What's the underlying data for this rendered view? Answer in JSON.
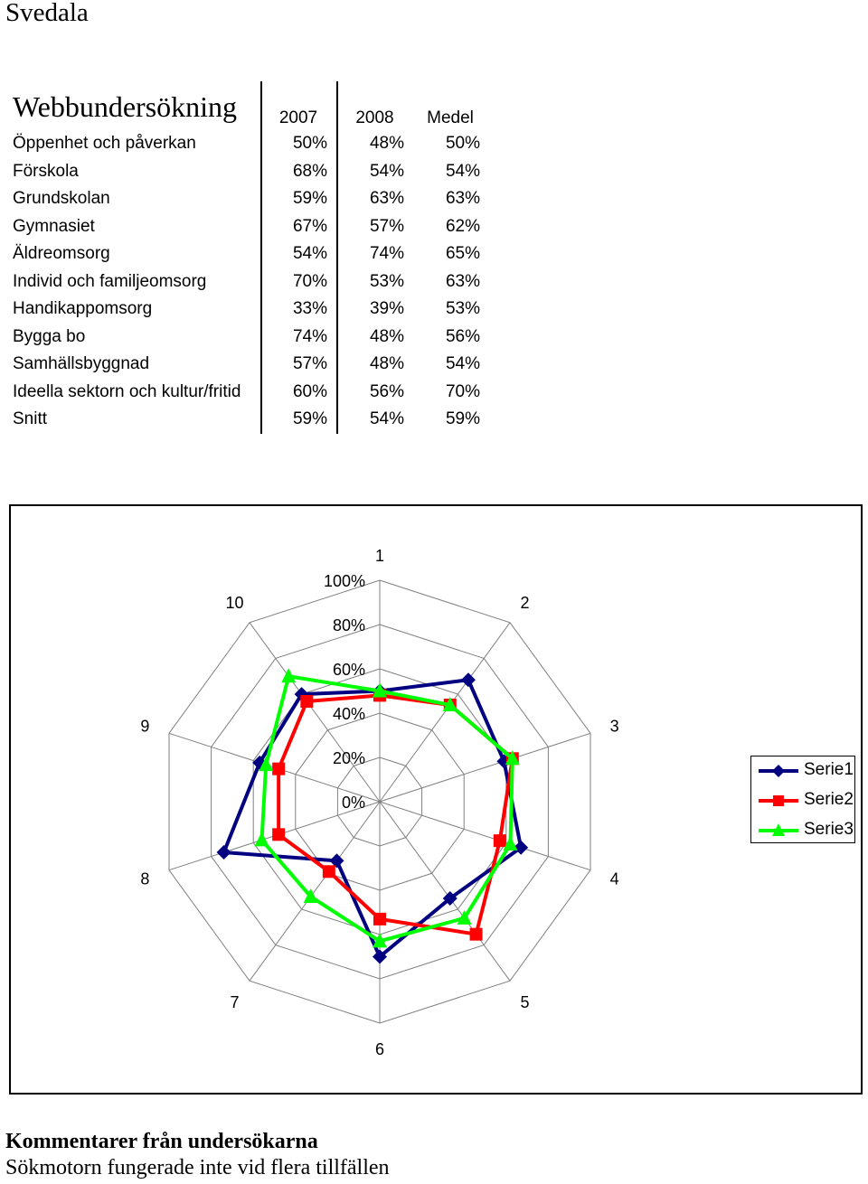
{
  "page_title": "Svedala",
  "table": {
    "caption": "Webbundersökning",
    "headers": [
      "2007",
      "2008",
      "Medel"
    ],
    "rows": [
      {
        "label": "Öppenhet och påverkan",
        "values": [
          "50%",
          "48%",
          "50%"
        ]
      },
      {
        "label": "Förskola",
        "values": [
          "68%",
          "54%",
          "54%"
        ]
      },
      {
        "label": "Grundskolan",
        "values": [
          "59%",
          "63%",
          "63%"
        ]
      },
      {
        "label": "Gymnasiet",
        "values": [
          "67%",
          "57%",
          "62%"
        ]
      },
      {
        "label": "Äldreomsorg",
        "values": [
          "54%",
          "74%",
          "65%"
        ]
      },
      {
        "label": "Individ och familjeomsorg",
        "values": [
          "70%",
          "53%",
          "63%"
        ]
      },
      {
        "label": "Handikappomsorg",
        "values": [
          "33%",
          "39%",
          "53%"
        ]
      },
      {
        "label": "Bygga bo",
        "values": [
          "74%",
          "48%",
          "56%"
        ]
      },
      {
        "label": "Samhällsbyggnad",
        "values": [
          "57%",
          "48%",
          "54%"
        ]
      },
      {
        "label": "Ideella sektorn och kultur/fritid",
        "values": [
          "60%",
          "56%",
          "70%"
        ]
      },
      {
        "label": "Snitt",
        "values": [
          "59%",
          "54%",
          "59%"
        ]
      }
    ]
  },
  "chart_data": {
    "type": "radar",
    "categories": [
      "1",
      "2",
      "3",
      "4",
      "5",
      "6",
      "7",
      "8",
      "9",
      "10"
    ],
    "radial_ticks": [
      "0%",
      "20%",
      "40%",
      "60%",
      "80%",
      "100%"
    ],
    "rlim": [
      0,
      1
    ],
    "legend_position": "right",
    "series": [
      {
        "name": "Serie1",
        "color": "#000080",
        "marker": "diamond",
        "values": [
          0.5,
          0.68,
          0.59,
          0.67,
          0.54,
          0.7,
          0.33,
          0.74,
          0.57,
          0.6
        ]
      },
      {
        "name": "Serie2",
        "color": "#ff0000",
        "marker": "square",
        "values": [
          0.48,
          0.54,
          0.63,
          0.57,
          0.74,
          0.53,
          0.39,
          0.48,
          0.48,
          0.56
        ]
      },
      {
        "name": "Serie3",
        "color": "#00ff00",
        "marker": "triangle",
        "values": [
          0.5,
          0.54,
          0.63,
          0.62,
          0.65,
          0.63,
          0.53,
          0.56,
          0.54,
          0.7
        ]
      }
    ]
  },
  "comments": {
    "heading": "Kommentarer från undersökarna",
    "text": "Sökmotorn fungerade inte vid flera tillfällen"
  }
}
